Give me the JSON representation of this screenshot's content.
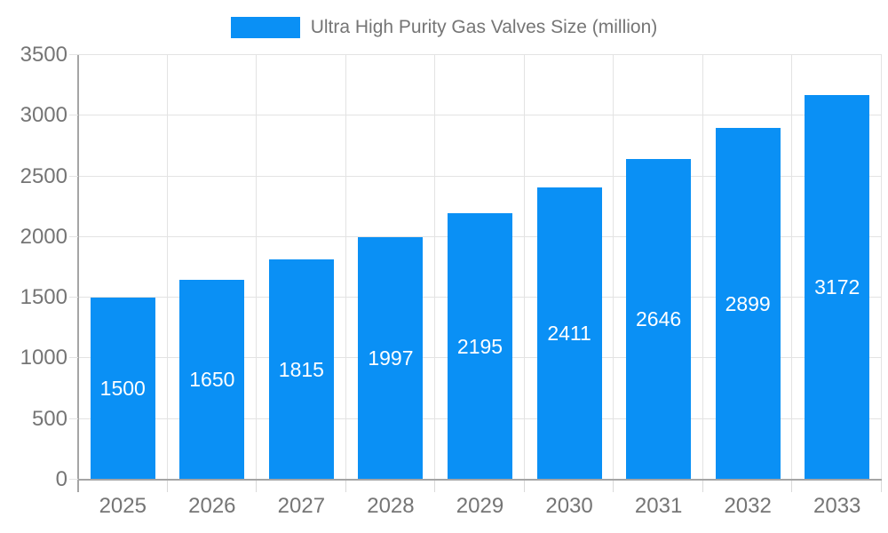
{
  "legend": {
    "label": "Ultra High Purity Gas Valves Size (million)",
    "swatch_color": "#0a90f5"
  },
  "colors": {
    "bar": "#0a90f5",
    "bar_label": "#ffffff",
    "axis_text": "#757575",
    "grid": "#e3e3e3",
    "tick": "#d9d9d9",
    "axis_line": "#a5a5a5",
    "background": "#ffffff"
  },
  "chart_data": {
    "type": "bar",
    "title": "Ultra High Purity Gas Valves Size (million)",
    "categories": [
      "2025",
      "2026",
      "2027",
      "2028",
      "2029",
      "2030",
      "2031",
      "2032",
      "2033"
    ],
    "values": [
      1500,
      1650,
      1815,
      1997,
      2195,
      2411,
      2646,
      2899,
      3172
    ],
    "xlabel": "",
    "ylabel": "",
    "ylim": [
      0,
      3500
    ],
    "yticks": [
      0,
      500,
      1000,
      1500,
      2000,
      2500,
      3000,
      3500
    ],
    "grid": true,
    "legend_position": "top",
    "bar_labels": "inside-centered"
  }
}
